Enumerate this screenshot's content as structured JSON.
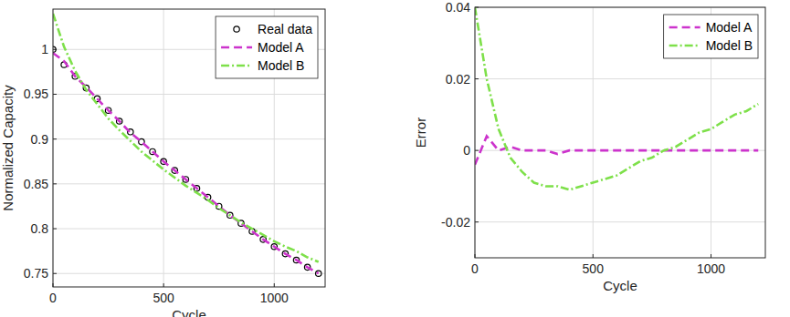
{
  "chart_data": [
    {
      "type": "line",
      "x_label": "Cycle",
      "y_label": "Normalized Capacity",
      "x": [
        0,
        50,
        100,
        150,
        200,
        250,
        300,
        350,
        400,
        450,
        500,
        550,
        600,
        650,
        700,
        750,
        800,
        850,
        900,
        950,
        1000,
        1050,
        1100,
        1150,
        1200
      ],
      "series": [
        {
          "name": "Real data",
          "color": "#000000",
          "marker": "circle",
          "line_style": "none",
          "values": [
            1.0,
            0.983,
            0.97,
            0.957,
            0.945,
            0.932,
            0.92,
            0.908,
            0.897,
            0.886,
            0.875,
            0.865,
            0.855,
            0.845,
            0.835,
            0.825,
            0.815,
            0.806,
            0.797,
            0.788,
            0.78,
            0.772,
            0.765,
            0.757,
            0.75
          ]
        },
        {
          "name": "Model A",
          "color": "#cc33cc",
          "marker": "none",
          "line_style": "dashed",
          "values": [
            0.996,
            0.987,
            0.97,
            0.958,
            0.945,
            0.932,
            0.92,
            0.907,
            0.897,
            0.886,
            0.875,
            0.865,
            0.855,
            0.845,
            0.835,
            0.825,
            0.815,
            0.806,
            0.797,
            0.788,
            0.78,
            0.772,
            0.765,
            0.757,
            0.75
          ]
        },
        {
          "name": "Model B",
          "color": "#7ee04a",
          "marker": "none",
          "line_style": "dashdot",
          "values": [
            1.04,
            1.003,
            0.976,
            0.955,
            0.939,
            0.923,
            0.91,
            0.898,
            0.886,
            0.876,
            0.866,
            0.857,
            0.848,
            0.84,
            0.832,
            0.823,
            0.815,
            0.807,
            0.8,
            0.793,
            0.786,
            0.78,
            0.775,
            0.768,
            0.763
          ]
        }
      ],
      "xlim": [
        0,
        1230
      ],
      "xticks": [
        0,
        500,
        1000
      ],
      "ylim": [
        0.735,
        1.045
      ],
      "yticks": [
        0.75,
        0.8,
        0.85,
        0.9,
        0.95,
        1
      ],
      "grid": true,
      "legend": "upper-right"
    },
    {
      "type": "line",
      "x_label": "Cycle",
      "y_label": "Error",
      "x": [
        0,
        50,
        100,
        150,
        200,
        250,
        300,
        350,
        400,
        450,
        500,
        550,
        600,
        650,
        700,
        750,
        800,
        850,
        900,
        950,
        1000,
        1050,
        1100,
        1150,
        1200
      ],
      "series": [
        {
          "name": "Model A",
          "color": "#cc33cc",
          "marker": "none",
          "line_style": "dashed",
          "values": [
            -0.004,
            0.004,
            0.0,
            0.001,
            0.0,
            0.0,
            0.0,
            -0.001,
            0.0,
            0.0,
            0.0,
            0.0,
            0.0,
            0.0,
            0.0,
            0.0,
            0.0,
            0.0,
            0.0,
            0.0,
            0.0,
            0.0,
            0.0,
            0.0,
            0.0
          ]
        },
        {
          "name": "Model B",
          "color": "#7ee04a",
          "marker": "none",
          "line_style": "dashdot",
          "values": [
            0.04,
            0.02,
            0.006,
            -0.002,
            -0.006,
            -0.009,
            -0.01,
            -0.01,
            -0.011,
            -0.01,
            -0.009,
            -0.008,
            -0.007,
            -0.005,
            -0.003,
            -0.002,
            0.0,
            0.001,
            0.003,
            0.005,
            0.006,
            0.008,
            0.01,
            0.011,
            0.013
          ]
        }
      ],
      "xlim": [
        0,
        1230
      ],
      "xticks": [
        0,
        500,
        1000
      ],
      "ylim": [
        -0.03,
        0.04
      ],
      "yticks": [
        -0.02,
        0,
        0.02,
        0.04
      ],
      "grid": true,
      "legend": "upper-right"
    }
  ]
}
